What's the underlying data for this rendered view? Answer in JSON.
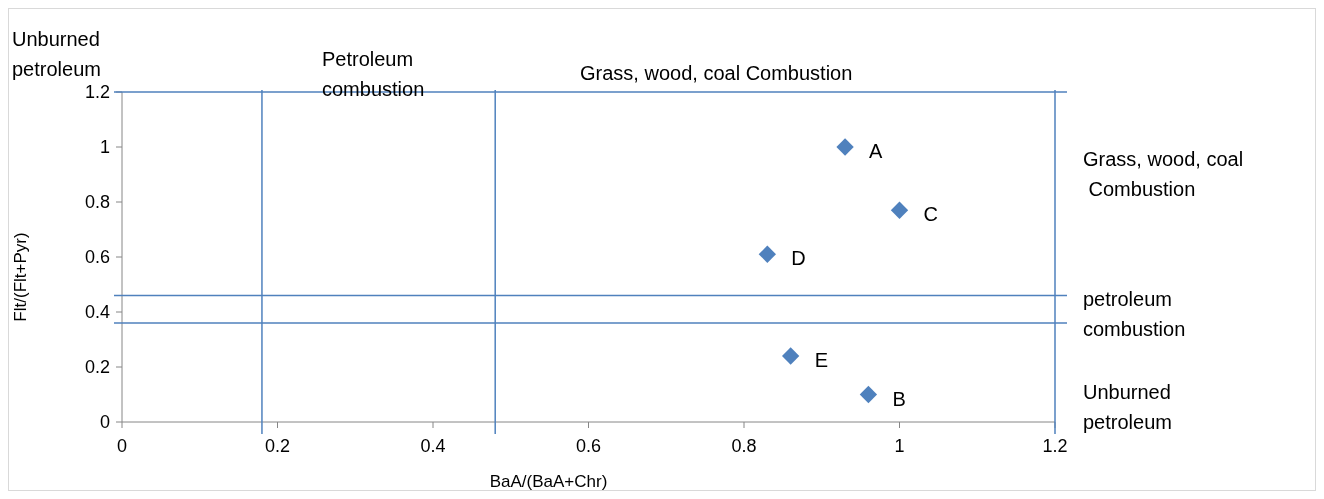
{
  "chart_data": {
    "type": "scatter",
    "xlabel": "BaA/(BaA+Chr)",
    "ylabel": "Flt/(Flt+Pyr)",
    "x": [
      0.93,
      0.96,
      1.0,
      0.83,
      0.86
    ],
    "series": [
      {
        "color": "#4f81bd",
        "values": [
          1.0,
          0.1,
          0.77,
          0.61,
          0.24
        ]
      }
    ],
    "marker": "diamond",
    "xlim": [
      0,
      1.2
    ],
    "ylim": [
      0,
      1.2
    ],
    "xticks": [
      0,
      0.2,
      0.4,
      0.6,
      0.8,
      1,
      1.2
    ],
    "yticks": [
      0,
      0.2,
      0.4,
      0.6,
      0.8,
      1,
      1.2
    ],
    "ref_lines": [
      {
        "axis": "x",
        "value": 0.18,
        "color": "#4f81bd"
      },
      {
        "axis": "x",
        "value": 0.48,
        "color": "#4f81bd"
      },
      {
        "axis": "x",
        "value": 1.2,
        "color": "#4f81bd"
      },
      {
        "axis": "y",
        "value": 0.36,
        "color": "#4f81bd"
      },
      {
        "axis": "y",
        "value": 0.46,
        "color": "#4f81bd"
      },
      {
        "axis": "y",
        "value": 1.2,
        "color": "#4f81bd"
      }
    ],
    "annotations": [
      "Unburned\npetroleum",
      "Petroleum\ncombustion",
      "Grass, wood, coal Combustion",
      "Grass, wood, coal\n Combustion",
      "petroleum\ncombustion",
      "Unburned\npetroleum",
      {
        "text": "A",
        "x": 0.93,
        "y": 1.0
      },
      {
        "text": "B",
        "x": 0.96,
        "y": 0.1
      },
      {
        "text": "C",
        "x": 1.0,
        "y": 0.77
      },
      {
        "text": "D",
        "x": 0.83,
        "y": 0.61
      },
      {
        "text": "E",
        "x": 0.86,
        "y": 0.24
      }
    ]
  }
}
